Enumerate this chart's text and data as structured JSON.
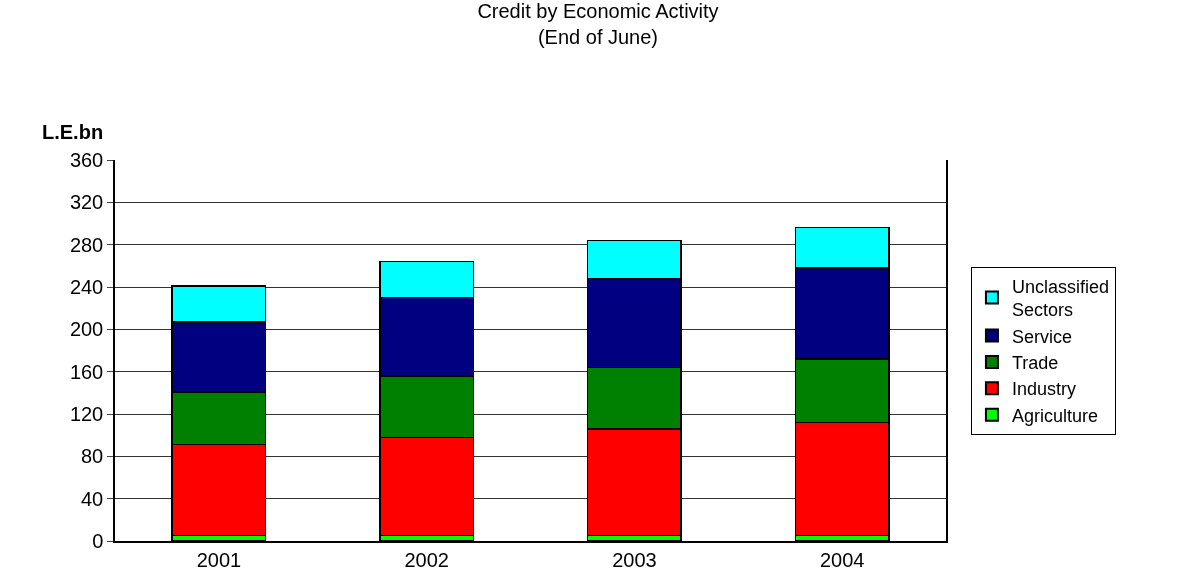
{
  "chart_data": {
    "type": "bar",
    "title": "Credit by Economic Activity",
    "subtitle": "(End of June)",
    "ylabel": "L.E.bn",
    "categories": [
      "2001",
      "2002",
      "2003",
      "2004"
    ],
    "series": [
      {
        "name": "Agriculture",
        "color": "#00ff00",
        "values": [
          5,
          5,
          5,
          5
        ]
      },
      {
        "name": "Industry",
        "color": "#ff0000",
        "values": [
          86,
          93,
          101,
          107
        ]
      },
      {
        "name": "Trade",
        "color": "#008000",
        "values": [
          50,
          58,
          58,
          60
        ]
      },
      {
        "name": "Service",
        "color": "#000080",
        "values": [
          66,
          74,
          84,
          86
        ]
      },
      {
        "name": "Unclassified Sectors",
        "color": "#00ffff",
        "values": [
          34,
          34,
          36,
          38
        ]
      }
    ],
    "stacked": true,
    "ylim": [
      0,
      360
    ],
    "yticks": [
      0,
      40,
      80,
      120,
      160,
      200,
      240,
      280,
      320,
      360
    ],
    "grid": "y",
    "legend": "right"
  }
}
